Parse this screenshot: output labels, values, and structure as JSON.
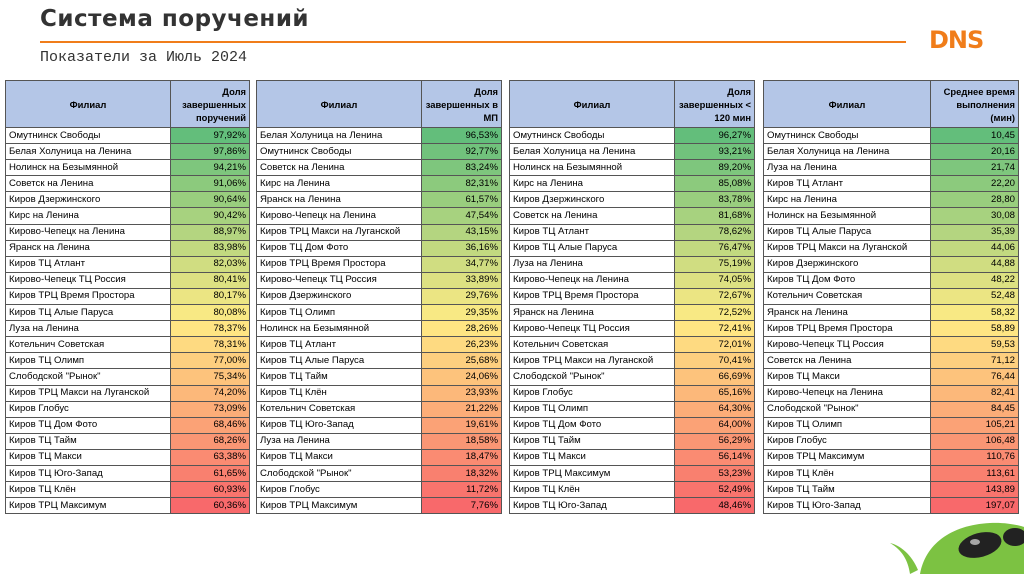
{
  "header": {
    "title": "Система поручений",
    "subtitle": "Показатели за Июль 2024",
    "logo": "DNS"
  },
  "tables": [
    {
      "columns": [
        "Филиал",
        "Доля завершенных поручений"
      ],
      "rows": [
        [
          "Омутнинск Свободы",
          "97,92%"
        ],
        [
          "Белая Холуница на Ленина",
          "97,86%"
        ],
        [
          "Нолинск на Безымянной",
          "94,21%"
        ],
        [
          "Советск на Ленина",
          "91,06%"
        ],
        [
          "Киров Дзержинского",
          "90,64%"
        ],
        [
          "Кирс на Ленина",
          "90,42%"
        ],
        [
          "Кирово-Чепецк на Ленина",
          "88,97%"
        ],
        [
          "Яранск на Ленина",
          "83,98%"
        ],
        [
          "Киров ТЦ Атлант",
          "82,03%"
        ],
        [
          "Кирово-Чепецк ТЦ Россия",
          "80,41%"
        ],
        [
          "Киров ТРЦ Время Простора",
          "80,17%"
        ],
        [
          "Киров ТЦ Алые Паруса",
          "80,08%"
        ],
        [
          "Луза на Ленина",
          "78,37%"
        ],
        [
          "Котельнич Советская",
          "78,31%"
        ],
        [
          "Киров ТЦ Олимп",
          "77,00%"
        ],
        [
          "Слободской \"Рынок\"",
          "75,34%"
        ],
        [
          "Киров ТРЦ Макси на Луганской",
          "74,20%"
        ],
        [
          "Киров Глобус",
          "73,09%"
        ],
        [
          "Киров ТЦ Дом Фото",
          "68,46%"
        ],
        [
          "Киров ТЦ Тайм",
          "68,26%"
        ],
        [
          "Киров ТЦ Макси",
          "63,38%"
        ],
        [
          "Киров ТЦ Юго-Запад",
          "61,65%"
        ],
        [
          "Киров ТЦ Клён",
          "60,93%"
        ],
        [
          "Киров ТРЦ Максимум",
          "60,36%"
        ]
      ]
    },
    {
      "columns": [
        "Филиал",
        "Доля завершенных в МП"
      ],
      "rows": [
        [
          "Белая Холуница на Ленина",
          "96,53%"
        ],
        [
          "Омутнинск Свободы",
          "92,77%"
        ],
        [
          "Советск на Ленина",
          "83,24%"
        ],
        [
          "Кирс на Ленина",
          "82,31%"
        ],
        [
          "Яранск на Ленина",
          "61,57%"
        ],
        [
          "Кирово-Чепецк на Ленина",
          "47,54%"
        ],
        [
          "Киров ТРЦ Макси на Луганской",
          "43,15%"
        ],
        [
          "Киров ТЦ Дом Фото",
          "36,16%"
        ],
        [
          "Киров ТРЦ Время Простора",
          "34,77%"
        ],
        [
          "Кирово-Чепецк ТЦ Россия",
          "33,89%"
        ],
        [
          "Киров Дзержинского",
          "29,76%"
        ],
        [
          "Киров ТЦ Олимп",
          "29,35%"
        ],
        [
          "Нолинск на Безымянной",
          "28,26%"
        ],
        [
          "Киров ТЦ Атлант",
          "26,23%"
        ],
        [
          "Киров ТЦ Алые Паруса",
          "25,68%"
        ],
        [
          "Киров ТЦ Тайм",
          "24,06%"
        ],
        [
          "Киров ТЦ Клён",
          "23,93%"
        ],
        [
          "Котельнич Советская",
          "21,22%"
        ],
        [
          "Киров ТЦ Юго-Запад",
          "19,61%"
        ],
        [
          "Луза на Ленина",
          "18,58%"
        ],
        [
          "Киров ТЦ Макси",
          "18,47%"
        ],
        [
          "Слободской \"Рынок\"",
          "18,32%"
        ],
        [
          "Киров Глобус",
          "11,72%"
        ],
        [
          "Киров ТРЦ Максимум",
          "7,76%"
        ]
      ]
    },
    {
      "columns": [
        "Филиал",
        "Доля завершенных < 120 мин"
      ],
      "rows": [
        [
          "Омутнинск Свободы",
          "96,27%"
        ],
        [
          "Белая Холуница на Ленина",
          "93,21%"
        ],
        [
          "Нолинск на Безымянной",
          "89,20%"
        ],
        [
          "Кирс на Ленина",
          "85,08%"
        ],
        [
          "Киров Дзержинского",
          "83,78%"
        ],
        [
          "Советск на Ленина",
          "81,68%"
        ],
        [
          "Киров ТЦ Атлант",
          "78,62%"
        ],
        [
          "Киров ТЦ Алые Паруса",
          "76,47%"
        ],
        [
          "Луза на Ленина",
          "75,19%"
        ],
        [
          "Кирово-Чепецк на Ленина",
          "74,05%"
        ],
        [
          "Киров ТРЦ Время Простора",
          "72,67%"
        ],
        [
          "Яранск на Ленина",
          "72,52%"
        ],
        [
          "Кирово-Чепецк ТЦ Россия",
          "72,41%"
        ],
        [
          "Котельнич Советская",
          "72,01%"
        ],
        [
          "Киров ТРЦ Макси на Луганской",
          "70,41%"
        ],
        [
          "Слободской \"Рынок\"",
          "66,69%"
        ],
        [
          "Киров Глобус",
          "65,16%"
        ],
        [
          "Киров ТЦ Олимп",
          "64,30%"
        ],
        [
          "Киров ТЦ Дом Фото",
          "64,00%"
        ],
        [
          "Киров ТЦ Тайм",
          "56,29%"
        ],
        [
          "Киров ТЦ Макси",
          "56,14%"
        ],
        [
          "Киров ТРЦ Максимум",
          "53,23%"
        ],
        [
          "Киров ТЦ Клён",
          "52,49%"
        ],
        [
          "Киров ТЦ Юго-Запад",
          "48,46%"
        ]
      ]
    },
    {
      "columns": [
        "Филиал",
        "Среднее время выполнения (мин)"
      ],
      "rows": [
        [
          "Омутнинск Свободы",
          "10,45"
        ],
        [
          "Белая Холуница на Ленина",
          "20,16"
        ],
        [
          "Луза на Ленина",
          "21,74"
        ],
        [
          "Киров ТЦ Атлант",
          "22,20"
        ],
        [
          "Кирс на Ленина",
          "28,80"
        ],
        [
          "Нолинск на Безымянной",
          "30,08"
        ],
        [
          "Киров ТЦ Алые Паруса",
          "35,39"
        ],
        [
          "Киров ТРЦ Макси на Луганской",
          "44,06"
        ],
        [
          "Киров Дзержинского",
          "44,88"
        ],
        [
          "Киров ТЦ Дом Фото",
          "48,22"
        ],
        [
          "Котельнич Советская",
          "52,48"
        ],
        [
          "Яранск на Ленина",
          "58,32"
        ],
        [
          "Киров ТРЦ Время Простора",
          "58,89"
        ],
        [
          "Кирово-Чепецк ТЦ Россия",
          "59,53"
        ],
        [
          "Советск на Ленина",
          "71,12"
        ],
        [
          "Киров ТЦ Макси",
          "76,44"
        ],
        [
          "Кирово-Чепецк на Ленина",
          "82,41"
        ],
        [
          "Слободской \"Рынок\"",
          "84,45"
        ],
        [
          "Киров ТЦ Олимп",
          "105,21"
        ],
        [
          "Киров Глобус",
          "106,48"
        ],
        [
          "Киров ТРЦ Максимум",
          "110,76"
        ],
        [
          "Киров ТЦ Клён",
          "113,61"
        ],
        [
          "Киров ТЦ Тайм",
          "143,89"
        ],
        [
          "Киров ТЦ Юго-Запад",
          "197,07"
        ]
      ]
    }
  ]
}
